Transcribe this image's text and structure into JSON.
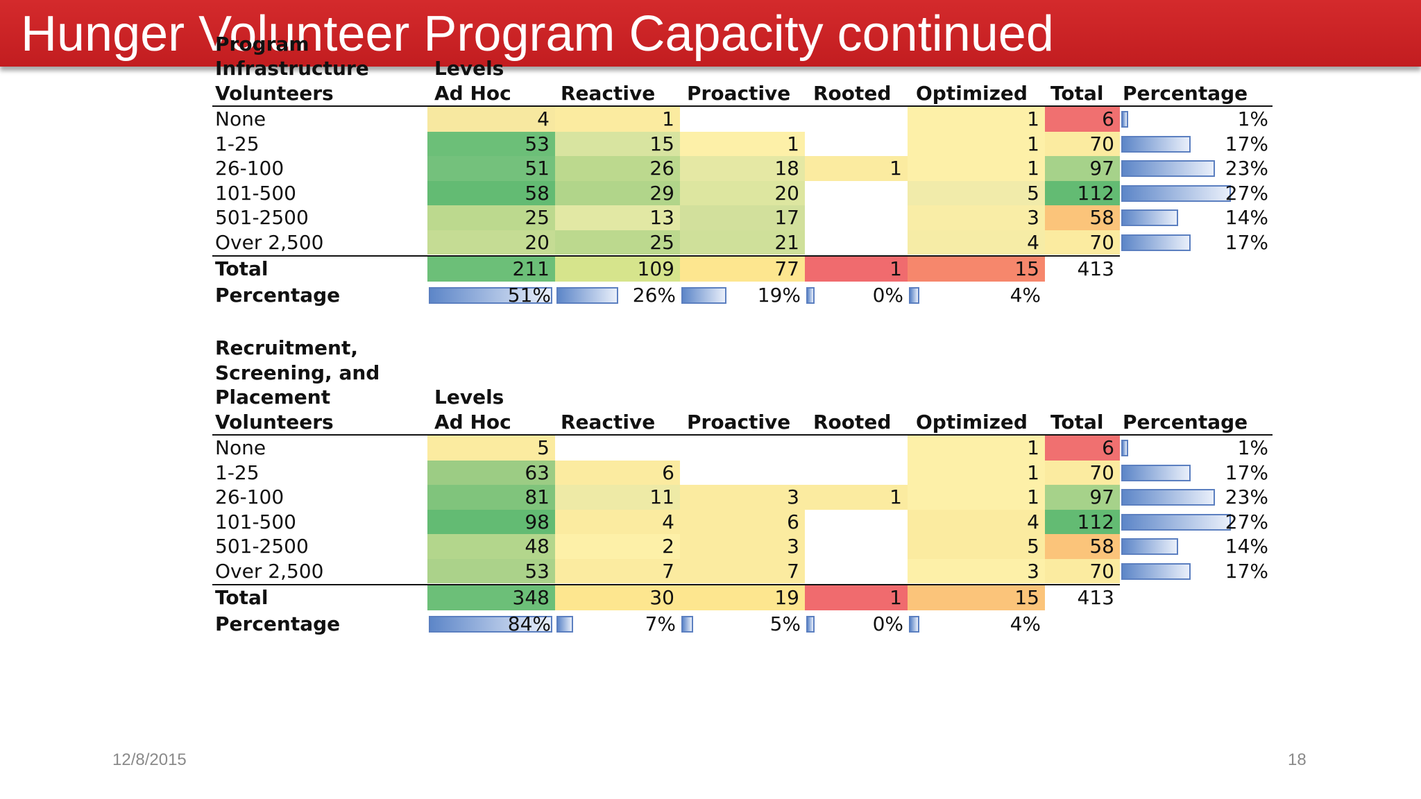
{
  "slide": {
    "title": "Hunger Volunteer Program Capacity continued",
    "date": "12/8/2015",
    "page_number": "18"
  },
  "tables": [
    {
      "name": "program-infrastructure",
      "header_lines": [
        "Program",
        "Infrastructure",
        "Volunteers"
      ],
      "levels_label": "Levels",
      "columns": [
        "Ad Hoc",
        "Reactive",
        "Proactive",
        "Rooted",
        "Optimized",
        "Total",
        "Percentage"
      ],
      "rows": [
        {
          "label": "None",
          "values": [
            "4",
            "1",
            "",
            "",
            "1",
            "6"
          ],
          "pct": "1%",
          "pct_value": 0.01
        },
        {
          "label": "1-25",
          "values": [
            "53",
            "15",
            "1",
            "",
            "1",
            "70"
          ],
          "pct": "17%",
          "pct_value": 0.17
        },
        {
          "label": "26-100",
          "values": [
            "51",
            "26",
            "18",
            "1",
            "1",
            "97"
          ],
          "pct": "23%",
          "pct_value": 0.23
        },
        {
          "label": "101-500",
          "values": [
            "58",
            "29",
            "20",
            "",
            "5",
            "112"
          ],
          "pct": "27%",
          "pct_value": 0.27
        },
        {
          "label": "501-2500",
          "values": [
            "25",
            "13",
            "17",
            "",
            "3",
            "58"
          ],
          "pct": "14%",
          "pct_value": 0.14
        },
        {
          "label": "Over 2,500",
          "values": [
            "20",
            "25",
            "21",
            "",
            "4",
            "70"
          ],
          "pct": "17%",
          "pct_value": 0.17
        }
      ],
      "cell_colors": [
        [
          "#f7e8a0",
          "#fbeba0",
          "",
          "",
          "#fdf0a8",
          "#f07070"
        ],
        [
          "#6cbf78",
          "#d8e4a0",
          "#fdf0a8",
          "",
          "#fdf0a8",
          "#fbeba0"
        ],
        [
          "#74c17c",
          "#bcd98e",
          "#e5e8a4",
          "#fbeba0",
          "#fdf0a8",
          "#a6d28a"
        ],
        [
          "#63bb73",
          "#b1d58a",
          "#dde6a0",
          "",
          "#f1ebaa",
          "#63bb73"
        ],
        [
          "#bcd98e",
          "#e2e8a4",
          "#d2e09c",
          "",
          "#f9eda6",
          "#fbc47a"
        ],
        [
          "#c5dc94",
          "#bcd98e",
          "#cfe09a",
          "",
          "#f6eca6",
          "#fbeba0"
        ]
      ],
      "total_row": {
        "label": "Total",
        "values": [
          "211",
          "109",
          "77",
          "1",
          "15",
          "413"
        ]
      },
      "total_colors": [
        "#6cbf78",
        "#d6e48c",
        "#fde68f",
        "#f06b6e",
        "#f6876c",
        ""
      ],
      "percentage_row": {
        "label": "Percentage",
        "values": [
          "51%",
          "26%",
          "19%",
          "0%",
          "4%"
        ],
        "fractions": [
          0.51,
          0.26,
          0.19,
          0.0,
          0.04
        ]
      }
    },
    {
      "name": "recruitment-screening",
      "header_lines": [
        "Recruitment,",
        "Screening, and",
        "Placement",
        "Volunteers"
      ],
      "levels_label": "Levels",
      "columns": [
        "Ad Hoc",
        "Reactive",
        "Proactive",
        "Rooted",
        "Optimized",
        "Total",
        "Percentage"
      ],
      "rows": [
        {
          "label": "None",
          "values": [
            "5",
            "",
            "",
            "",
            "1",
            "6"
          ],
          "pct": "1%",
          "pct_value": 0.01
        },
        {
          "label": "1-25",
          "values": [
            "63",
            "6",
            "",
            "",
            "1",
            "70"
          ],
          "pct": "17%",
          "pct_value": 0.17
        },
        {
          "label": "26-100",
          "values": [
            "81",
            "11",
            "3",
            "1",
            "1",
            "97"
          ],
          "pct": "23%",
          "pct_value": 0.23
        },
        {
          "label": "101-500",
          "values": [
            "98",
            "4",
            "6",
            "",
            "4",
            "112"
          ],
          "pct": "27%",
          "pct_value": 0.27
        },
        {
          "label": "501-2500",
          "values": [
            "48",
            "2",
            "3",
            "",
            "5",
            "58"
          ],
          "pct": "14%",
          "pct_value": 0.14
        },
        {
          "label": "Over 2,500",
          "values": [
            "53",
            "7",
            "7",
            "",
            "3",
            "70"
          ],
          "pct": "17%",
          "pct_value": 0.17
        }
      ],
      "cell_colors": [
        [
          "#fbeba0",
          "",
          "",
          "",
          "#fdf0a8",
          "#f07070"
        ],
        [
          "#9ccc84",
          "#fbeba0",
          "",
          "",
          "#fdf0a8",
          "#fbeba0"
        ],
        [
          "#80c47c",
          "#eeeaa6",
          "#fbeba0",
          "#fbeba0",
          "#fdf0a8",
          "#a6d28a"
        ],
        [
          "#63bb73",
          "#fbeba0",
          "#fbeba0",
          "",
          "#fbeba0",
          "#63bb73"
        ],
        [
          "#b3d68c",
          "#fdf0a8",
          "#fbeba0",
          "",
          "#fbeba0",
          "#fbc47a"
        ],
        [
          "#abd28a",
          "#fbeba0",
          "#fbeba0",
          "",
          "#fdf0a8",
          "#fbeba0"
        ]
      ],
      "total_row": {
        "label": "Total",
        "values": [
          "348",
          "30",
          "19",
          "1",
          "15",
          "413"
        ]
      },
      "total_colors": [
        "#6cbf78",
        "#fde68f",
        "#fde68f",
        "#f06b6e",
        "#fbc47a",
        ""
      ],
      "percentage_row": {
        "label": "Percentage",
        "values": [
          "84%",
          "7%",
          "5%",
          "0%",
          "4%"
        ],
        "fractions": [
          0.84,
          0.07,
          0.05,
          0.0,
          0.04
        ]
      }
    }
  ],
  "colors": {
    "title_bar": "#c9201f",
    "bar_border": "#5b7fc0",
    "bar_fill": "#5d86c8"
  }
}
